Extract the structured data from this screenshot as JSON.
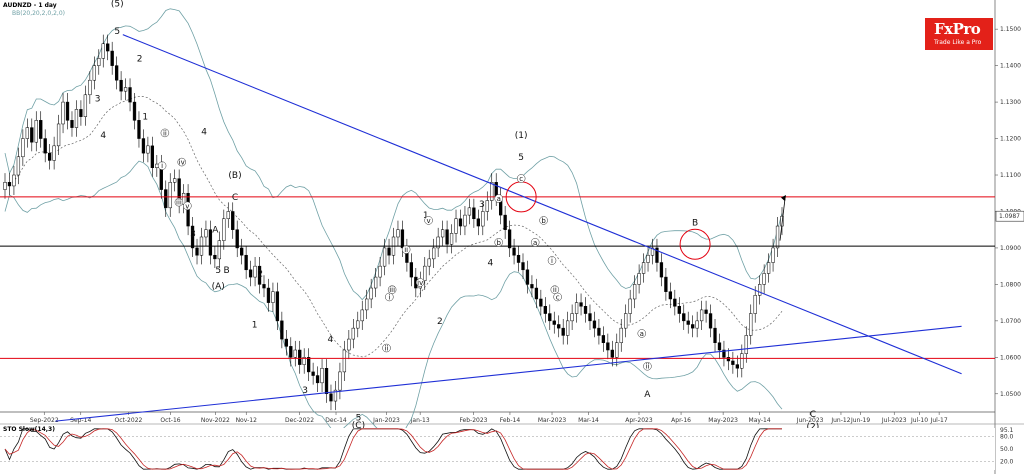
{
  "header": {
    "symbol": "AUDNZD - 1 day",
    "indicator": "BB(20,20,2,0,2,0)",
    "sto_label": "STO Slow(14,3)"
  },
  "logo": {
    "brand": "FxPro",
    "tagline": "Trade Like a Pro"
  },
  "colors": {
    "trendline": "#1f2fd6",
    "resistance": "#e3000f",
    "support": "#000000",
    "bollinger": "#6fa0a5",
    "sto_k": "#111111",
    "sto_d": "#c62828",
    "logo_bg": "#e32119"
  },
  "chart_data": {
    "type": "candlestick",
    "y_axis_ticks": [
      "1.1500",
      "1.1400",
      "1.1300",
      "1.1200",
      "1.1100",
      "1.1000",
      "1.0900",
      "1.0800",
      "1.0700",
      "1.0600",
      "1.0500"
    ],
    "x_axis_ticks": [
      "Sep-2022",
      "Sep-14",
      "Oct-2022",
      "Oct-16",
      "Nov-2022",
      "Nov-12",
      "Dec-2022",
      "Dec-14",
      "Jan-2023",
      "Jan-13",
      "Feb-2023",
      "Feb-14",
      "Mar-2023",
      "Mar-14",
      "Apr-2023",
      "Apr-16",
      "May-2023",
      "May-14",
      "Jun-2023",
      "Jun-12",
      "Jun-19",
      "Jul-2023",
      "Jul-10",
      "Jul-17"
    ],
    "current_price": "1.0987",
    "ylim": [
      1.045,
      1.158
    ],
    "horizontal_levels": [
      {
        "kind": "resistance",
        "value": 1.104
      },
      {
        "kind": "support",
        "value": 1.0905
      },
      {
        "kind": "support-low",
        "value": 1.0597
      }
    ],
    "trendlines": [
      {
        "from": [
          "Sep-29",
          1.1485
        ],
        "to": [
          "Jul-25",
          1.0555
        ]
      },
      {
        "from": [
          "Sep-05",
          1.0425
        ],
        "to": [
          "Jul-25",
          1.0685
        ]
      }
    ],
    "close_series": [
      1.108,
      1.107,
      1.11,
      1.115,
      1.12,
      1.123,
      1.119,
      1.125,
      1.12,
      1.116,
      1.114,
      1.118,
      1.124,
      1.13,
      1.125,
      1.123,
      1.128,
      1.126,
      1.132,
      1.136,
      1.14,
      1.142,
      1.146,
      1.144,
      1.14,
      1.136,
      1.133,
      1.134,
      1.13,
      1.125,
      1.12,
      1.116,
      1.118,
      1.112,
      1.113,
      1.106,
      1.101,
      1.108,
      1.109,
      1.102,
      1.105,
      1.096,
      1.09,
      1.088,
      1.093,
      1.095,
      1.088,
      1.087,
      1.092,
      1.098,
      1.1,
      1.095,
      1.09,
      1.088,
      1.084,
      1.082,
      1.085,
      1.08,
      1.079,
      1.075,
      1.078,
      1.07,
      1.065,
      1.063,
      1.06,
      1.062,
      1.058,
      1.06,
      1.056,
      1.055,
      1.053,
      1.057,
      1.05,
      1.048,
      1.051,
      1.056,
      1.062,
      1.065,
      1.068,
      1.07,
      1.073,
      1.076,
      1.079,
      1.082,
      1.085,
      1.09,
      1.088,
      1.093,
      1.095,
      1.09,
      1.086,
      1.082,
      1.079,
      1.081,
      1.085,
      1.087,
      1.09,
      1.093,
      1.095,
      1.091,
      1.094,
      1.098,
      1.096,
      1.099,
      1.101,
      1.098,
      1.096,
      1.1,
      1.103,
      1.108,
      1.104,
      1.099,
      1.095,
      1.09,
      1.088,
      1.086,
      1.084,
      1.08,
      1.079,
      1.076,
      1.074,
      1.072,
      1.07,
      1.069,
      1.068,
      1.066,
      1.07,
      1.072,
      1.075,
      1.074,
      1.072,
      1.07,
      1.068,
      1.066,
      1.064,
      1.062,
      1.06,
      1.064,
      1.068,
      1.072,
      1.076,
      1.08,
      1.083,
      1.086,
      1.088,
      1.09,
      1.086,
      1.082,
      1.078,
      1.076,
      1.074,
      1.072,
      1.07,
      1.069,
      1.068,
      1.07,
      1.073,
      1.072,
      1.068,
      1.064,
      1.062,
      1.06,
      1.059,
      1.058,
      1.057,
      1.061,
      1.066,
      1.072,
      1.077,
      1.08,
      1.083,
      1.086,
      1.09,
      1.096,
      1.0987
    ],
    "indicator_panel": {
      "name": "STO Slow(14,3)",
      "ticks": [
        "95.1",
        "80.0",
        "50.0",
        "20.0"
      ],
      "ylim": [
        0,
        100
      ]
    },
    "annotations": [
      {
        "text": "5",
        "at": [
          "Sep-27",
          1.1495
        ]
      },
      {
        "text": "(5)",
        "at": [
          "Sep-27",
          1.157
        ]
      },
      {
        "text": "3",
        "at": [
          "Sep-20",
          1.131
        ]
      },
      {
        "text": "4",
        "at": [
          "Sep-22",
          1.121
        ]
      },
      {
        "text": "2",
        "at": [
          "Oct-05",
          1.142
        ]
      },
      {
        "text": "1",
        "at": [
          "Oct-07",
          1.126
        ]
      },
      {
        "text": "4",
        "at": [
          "Oct-28",
          1.122
        ]
      },
      {
        "text": "3",
        "at": [
          "Oct-24",
          1.094
        ]
      },
      {
        "text": "A",
        "at": [
          "Nov-01",
          1.095
        ]
      },
      {
        "text": "5",
        "at": [
          "Nov-02",
          1.084
        ]
      },
      {
        "text": "(A)",
        "at": [
          "Nov-02",
          1.0795
        ]
      },
      {
        "text": "B",
        "at": [
          "Nov-05",
          1.084
        ]
      },
      {
        "text": "(B)",
        "at": [
          "Nov-08",
          1.11
        ]
      },
      {
        "text": "C",
        "at": [
          "Nov-08",
          1.104
        ]
      },
      {
        "text": "2",
        "at": [
          "Nov-17",
          1.083
        ]
      },
      {
        "text": "1",
        "at": [
          "Nov-15",
          1.069
        ]
      },
      {
        "text": "4",
        "at": [
          "Dec-12",
          1.065
        ]
      },
      {
        "text": "3",
        "at": [
          "Dec-03",
          1.051
        ]
      },
      {
        "text": "5",
        "at": [
          "Dec-22",
          1.0435
        ]
      },
      {
        "text": "(C)",
        "at": [
          "Dec-22",
          1.0415
        ]
      },
      {
        "text": "1",
        "at": [
          "Jan-15",
          1.099
        ]
      },
      {
        "text": "2",
        "at": [
          "Jan-20",
          1.07
        ]
      },
      {
        "text": "3",
        "at": [
          "Feb-04",
          1.102
        ]
      },
      {
        "text": "4",
        "at": [
          "Feb-07",
          1.086
        ]
      },
      {
        "text": "5",
        "at": [
          "Feb-18",
          1.115
        ]
      },
      {
        "text": "(1)",
        "at": [
          "Feb-18",
          1.121
        ]
      },
      {
        "text": "B",
        "at": [
          "Apr-21",
          1.097
        ]
      },
      {
        "text": "A",
        "at": [
          "Apr-04",
          1.05
        ]
      },
      {
        "text": "C",
        "at": [
          "Jun-02",
          1.0445
        ]
      },
      {
        "text": "(2)",
        "at": [
          "Jun-02",
          1.041
        ]
      },
      {
        "text": "ii",
        "at": [
          "Oct-14",
          1.121
        ]
      },
      {
        "text": "i",
        "at": [
          "Oct-13",
          1.112
        ]
      },
      {
        "text": "iv",
        "at": [
          "Oct-20",
          1.113
        ]
      },
      {
        "text": "iii",
        "at": [
          "Oct-19",
          1.102
        ]
      },
      {
        "text": "v",
        "at": [
          "Oct-22",
          1.101
        ]
      },
      {
        "text": "ii",
        "at": [
          "Jan-08",
          1.089
        ]
      },
      {
        "text": "v",
        "at": [
          "Jan-16",
          1.097
        ]
      },
      {
        "text": "iv",
        "at": [
          "Jan-13",
          1.08
        ]
      },
      {
        "text": "iii",
        "at": [
          "Jan-03",
          1.078
        ]
      },
      {
        "text": "i",
        "at": [
          "Jan-02",
          1.076
        ]
      },
      {
        "text": "ii",
        "at": [
          "Jan-01",
          1.062
        ]
      },
      {
        "text": "c",
        "at": [
          "Feb-18",
          1.1085
        ]
      },
      {
        "text": "a",
        "at": [
          "Feb-10",
          1.103
        ]
      },
      {
        "text": "b",
        "at": [
          "Feb-10",
          1.091
        ]
      },
      {
        "text": "a",
        "at": [
          "Feb-23",
          1.091
        ]
      },
      {
        "text": "b",
        "at": [
          "Feb-26",
          1.097
        ]
      },
      {
        "text": "i",
        "at": [
          "Mar-01",
          1.086
        ]
      },
      {
        "text": "ii",
        "at": [
          "Mar-02",
          1.078
        ]
      },
      {
        "text": "c",
        "at": [
          "Mar-03",
          1.076
        ]
      },
      {
        "text": "ii",
        "at": [
          "Apr-04",
          1.057
        ]
      },
      {
        "text": "a",
        "at": [
          "Apr-02",
          1.066
        ]
      }
    ]
  }
}
